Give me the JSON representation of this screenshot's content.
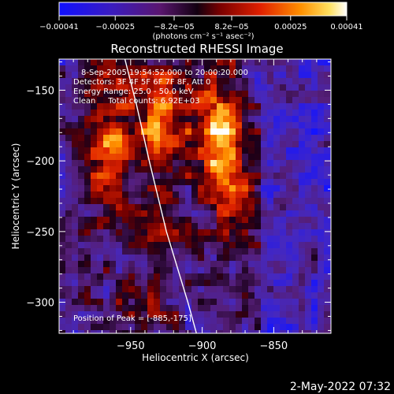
{
  "chart_data": {
    "type": "heatmap",
    "title": "Reconstructed RHESSI Image",
    "xlabel": "Heliocentric X (arcsec)",
    "ylabel": "Heliocentric Y (arcsec)",
    "xlim": [
      -1000,
      -810
    ],
    "ylim": [
      -322,
      -128
    ],
    "x_ticks": [
      -950,
      -900,
      -850
    ],
    "x_tick_labels": [
      "−950",
      "−900",
      "−850"
    ],
    "y_ticks": [
      -150,
      -200,
      -250,
      -300
    ],
    "y_tick_labels": [
      "−150",
      "−200",
      "−250",
      "−300"
    ],
    "colorbar": {
      "min": -0.00041,
      "max": 0.00041,
      "ticks": [
        -0.00041,
        -0.00025,
        -8.2e-05,
        8.2e-05,
        0.00025,
        0.00041
      ],
      "tick_labels": [
        "−0.00041",
        "−0.00025",
        "−8.2e−05",
        "8.2e−05",
        "0.00025",
        "0.00041"
      ],
      "units_label": "(photons cm⁻² s⁻¹ asec⁻²)"
    },
    "info_lines": [
      "8-Sep-2005 19:54:52.000 to 20:00:20.000",
      "Detectors: 3F 4F 5F 6F 7F 8F, Att 0",
      "Energy Range: 25.0 - 50.0 keV",
      "Clean     Total counts: 6.92E+03"
    ],
    "peak_label": "Position of Peak = [-885,-175]",
    "peak": [
      -885,
      -175
    ],
    "limb_curve": [
      [
        -954,
        -128
      ],
      [
        -946,
        -160
      ],
      [
        -937,
        -200
      ],
      [
        -925,
        -250
      ],
      [
        -910,
        -300
      ],
      [
        -904,
        -322
      ]
    ],
    "colors": {
      "background": "#000000",
      "limb": "#ffffff",
      "text": "#ffffff"
    }
  },
  "footer_timestamp": "2-May-2022 07:32"
}
